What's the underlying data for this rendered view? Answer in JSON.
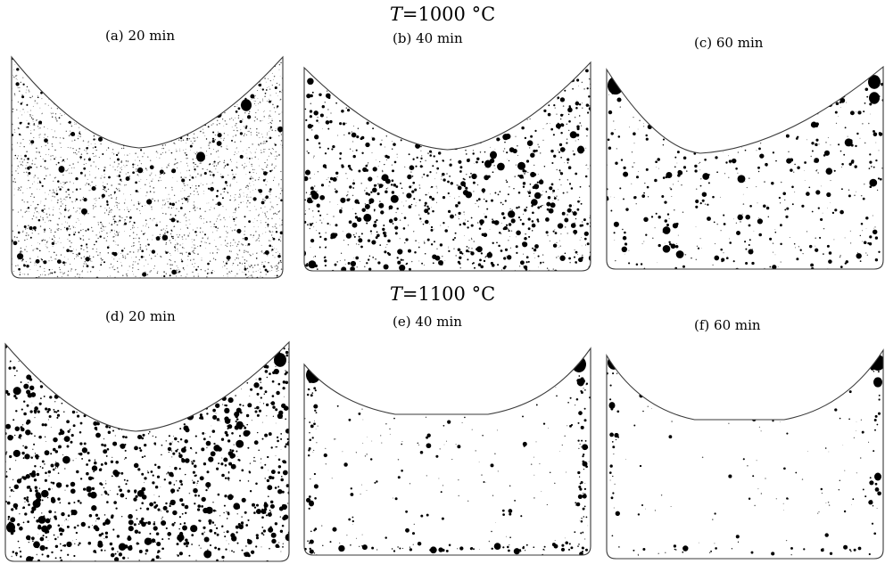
{
  "rows": [
    {
      "title_symbol": "T",
      "title_rest": "=1000 °C",
      "panels": [
        {
          "label": "(a)",
          "time": "20 min"
        },
        {
          "label": "(b)",
          "time": "40 min"
        },
        {
          "label": "(c)",
          "time": "60 min"
        }
      ]
    },
    {
      "title_symbol": "T",
      "title_rest": "=1100 °C",
      "panels": [
        {
          "label": "(d)",
          "time": "20 min"
        },
        {
          "label": "(e)",
          "time": "40 min"
        },
        {
          "label": "(f)",
          "time": "60 min"
        }
      ]
    }
  ],
  "colors": {
    "pore": "#000000",
    "outline": "#3a3a3a",
    "background": "#ffffff"
  }
}
